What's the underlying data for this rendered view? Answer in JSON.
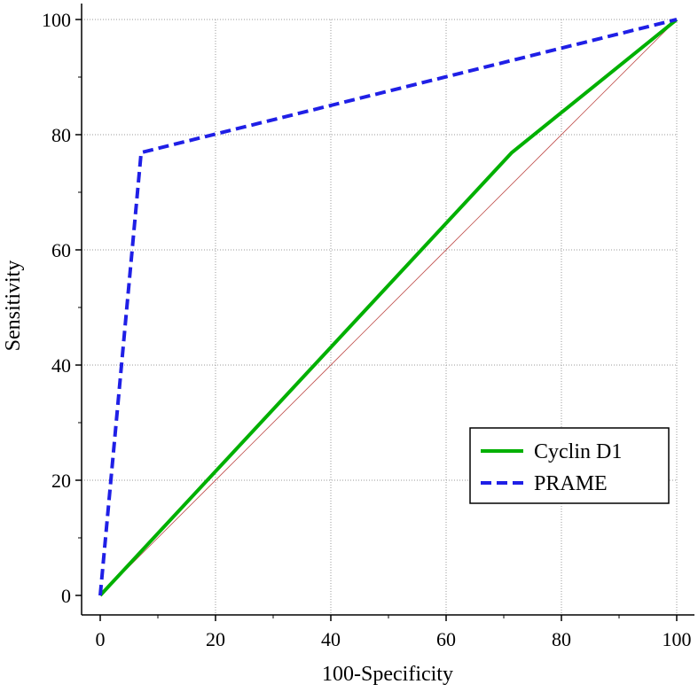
{
  "chart_data": {
    "type": "line",
    "title": "",
    "xlabel": "100-Specificity",
    "ylabel": "Sensitivity",
    "xlim": [
      0,
      100
    ],
    "ylim": [
      0,
      100
    ],
    "xticks": [
      0,
      20,
      40,
      60,
      80,
      100
    ],
    "yticks": [
      0,
      20,
      40,
      60,
      80,
      100
    ],
    "xtick_labels": [
      "0",
      "20",
      "40",
      "60",
      "80",
      "100"
    ],
    "ytick_labels": [
      "0",
      "20",
      "40",
      "60",
      "80",
      "100"
    ],
    "grid": true,
    "legend_position": "bottom-right",
    "reference_line": {
      "name": "chance-diagonal",
      "x": [
        0,
        100
      ],
      "y": [
        0,
        100
      ],
      "color": "#c0504d"
    },
    "series": [
      {
        "name": "Cyclin D1",
        "style": "solid",
        "color": "#00b000",
        "x": [
          0,
          71.4,
          100
        ],
        "y": [
          0,
          76.9,
          100
        ]
      },
      {
        "name": "PRAME",
        "style": "dashed",
        "color": "#1f1fe6",
        "x": [
          0,
          7.1,
          100
        ],
        "y": [
          0,
          76.9,
          100
        ]
      }
    ]
  }
}
